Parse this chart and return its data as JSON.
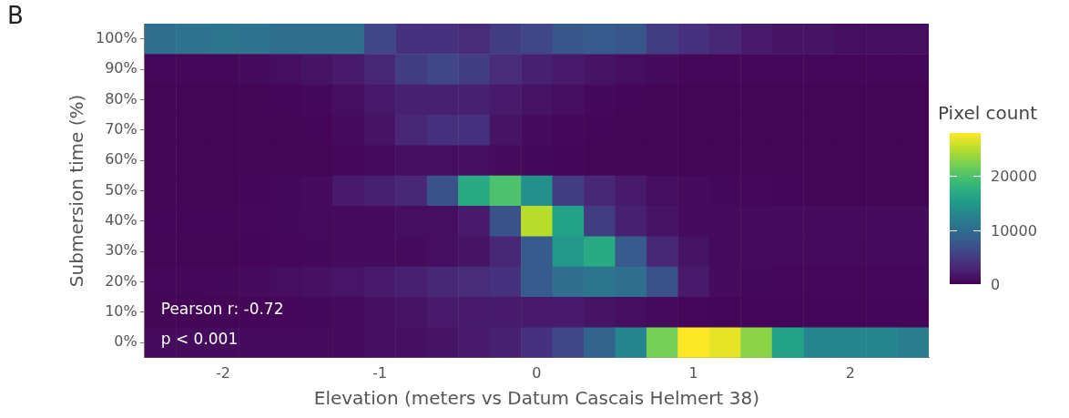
{
  "chart_data": {
    "type": "heatmap",
    "title": "B",
    "xlabel": "Elevation (meters vs Datum Cascais Helmert 38)",
    "ylabel": "Submersion time (%)",
    "clabel": "Pixel count",
    "x": [
      -2.4,
      -2.2,
      -2.0,
      -1.8,
      -1.6,
      -1.4,
      -1.2,
      -1.0,
      -0.8,
      -0.6,
      -0.4,
      -0.2,
      0.0,
      0.2,
      0.4,
      0.6,
      0.8,
      1.0,
      1.2,
      1.4,
      1.6,
      1.8,
      2.0,
      2.2,
      2.4
    ],
    "xlim": [
      -2.5,
      2.5
    ],
    "xticks": [
      -2,
      -1,
      0,
      1,
      2
    ],
    "y_categories": [
      "100%",
      "90%",
      "80%",
      "70%",
      "60%",
      "50%",
      "40%",
      "30%",
      "20%",
      "10%",
      "0%"
    ],
    "cells": [
      [
        10000,
        10500,
        11000,
        10500,
        10000,
        10000,
        10000,
        6000,
        4000,
        4000,
        3500,
        5000,
        6000,
        7500,
        8000,
        7500,
        5000,
        4000,
        3000,
        2000,
        1500,
        1500,
        1000,
        1000,
        1000
      ],
      [
        500,
        500,
        500,
        800,
        1000,
        1500,
        2000,
        3000,
        5000,
        6000,
        5000,
        3500,
        2500,
        2000,
        1500,
        1000,
        800,
        500,
        500,
        500,
        500,
        500,
        500,
        500,
        500
      ],
      [
        300,
        300,
        300,
        300,
        400,
        600,
        1000,
        1800,
        2500,
        2500,
        2500,
        2000,
        1500,
        1000,
        600,
        400,
        300,
        300,
        300,
        300,
        300,
        300,
        300,
        300,
        300
      ],
      [
        300,
        300,
        300,
        300,
        300,
        400,
        800,
        1500,
        3000,
        4000,
        4000,
        1500,
        800,
        500,
        400,
        300,
        300,
        300,
        300,
        300,
        300,
        300,
        300,
        300,
        300
      ],
      [
        300,
        300,
        300,
        300,
        300,
        300,
        500,
        800,
        1000,
        1000,
        1000,
        800,
        600,
        400,
        300,
        300,
        300,
        300,
        300,
        300,
        300,
        300,
        300,
        300,
        300
      ],
      [
        300,
        300,
        300,
        400,
        600,
        800,
        2000,
        2500,
        3000,
        7000,
        17000,
        20000,
        14000,
        5000,
        3000,
        2000,
        1000,
        800,
        600,
        500,
        400,
        300,
        300,
        300,
        300
      ],
      [
        400,
        400,
        400,
        500,
        600,
        700,
        800,
        900,
        1000,
        1000,
        2000,
        7000,
        25000,
        16000,
        5000,
        2500,
        1500,
        800,
        800,
        800,
        800,
        800,
        800,
        800,
        800
      ],
      [
        300,
        300,
        300,
        400,
        500,
        600,
        700,
        800,
        900,
        1000,
        1500,
        3000,
        8000,
        15000,
        17000,
        8000,
        3000,
        1500,
        700,
        700,
        700,
        700,
        700,
        700,
        700
      ],
      [
        500,
        500,
        600,
        800,
        1000,
        1300,
        1600,
        2000,
        2500,
        3000,
        3500,
        4000,
        8000,
        10000,
        11000,
        10000,
        7000,
        2000,
        800,
        600,
        500,
        500,
        500,
        500,
        500
      ],
      [
        300,
        300,
        300,
        400,
        500,
        600,
        800,
        1000,
        1500,
        2000,
        2000,
        2000,
        2000,
        2000,
        1500,
        1000,
        700,
        500,
        400,
        400,
        400,
        400,
        400,
        400,
        400
      ],
      [
        800,
        800,
        800,
        800,
        800,
        800,
        800,
        1000,
        1200,
        1500,
        2000,
        2500,
        4000,
        6000,
        9000,
        13000,
        22000,
        28000,
        27000,
        23000,
        16000,
        13000,
        13000,
        13000,
        12000
      ]
    ],
    "clim": [
      0,
      28000
    ],
    "cticks": [
      0,
      10000,
      20000
    ],
    "annotations": [
      "Pearson r: -0.72",
      "p < 0.001"
    ]
  }
}
